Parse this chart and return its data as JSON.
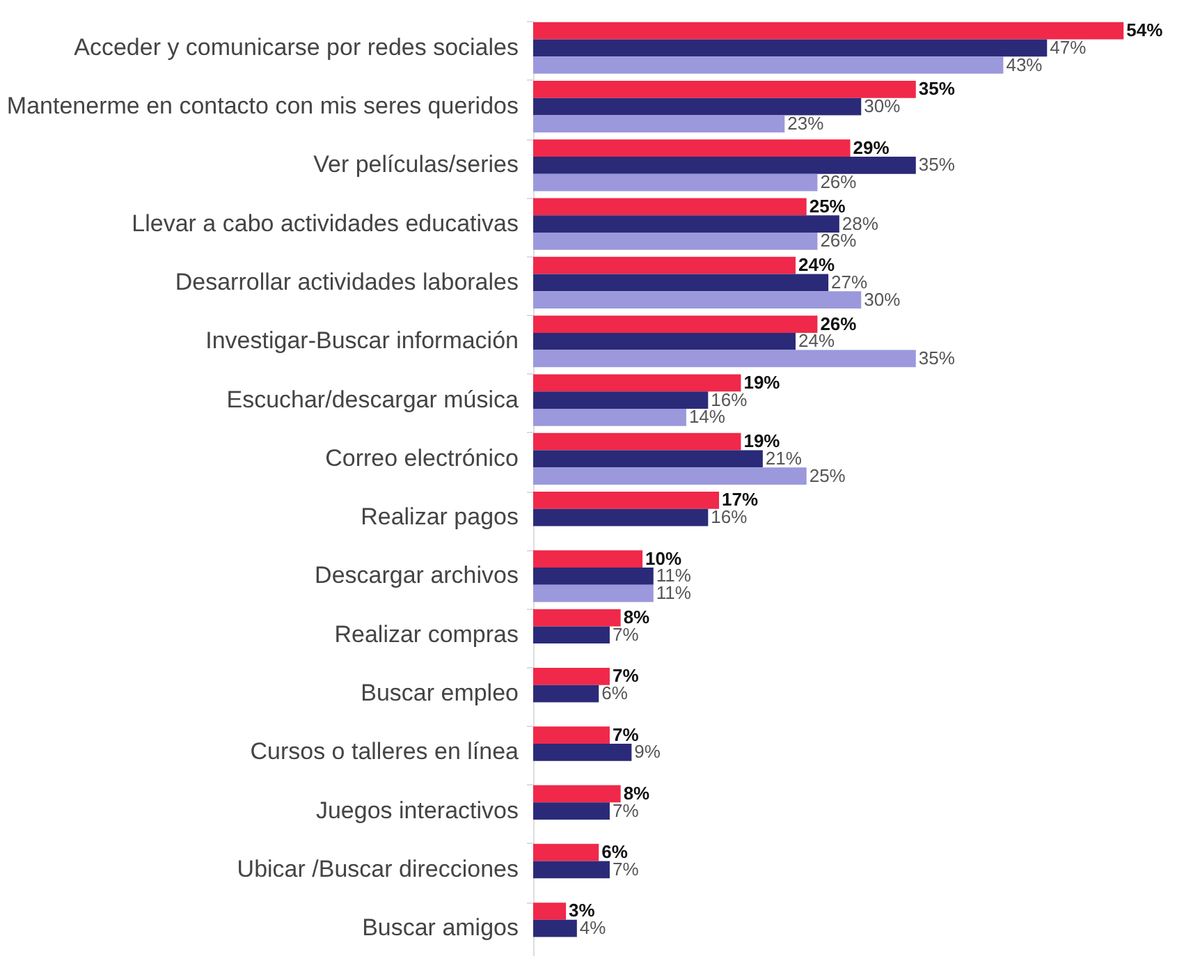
{
  "chart_data": {
    "type": "bar",
    "orientation": "horizontal",
    "legend": false,
    "categories": [
      "Acceder y comunicarse por redes sociales",
      "Mantenerme en contacto con mis seres queridos",
      "Ver películas/series",
      "Llevar a cabo actividades educativas",
      "Desarrollar actividades laborales",
      "Investigar-Buscar información",
      "Escuchar/descargar música",
      "Correo electrónico",
      "Realizar pagos",
      "Descargar archivos",
      "Realizar compras",
      "Buscar empleo",
      "Cursos o talleres en línea",
      "Juegos interactivos",
      "Ubicar /Buscar direcciones",
      "Buscar amigos"
    ],
    "series": [
      {
        "color": "#f0284a",
        "values": [
          54,
          35,
          29,
          25,
          24,
          26,
          19,
          19,
          17,
          10,
          8,
          7,
          7,
          8,
          6,
          3
        ],
        "value_labels": [
          "54%",
          "35%",
          "29%",
          "25%",
          "24%",
          "26%",
          "19%",
          "19%",
          "17%",
          "10%",
          "8%",
          "7%",
          "7%",
          "8%",
          "6%",
          "3%"
        ]
      },
      {
        "color": "#2b2a78",
        "values": [
          47,
          30,
          35,
          28,
          27,
          24,
          16,
          21,
          16,
          11,
          7,
          6,
          9,
          7,
          7,
          4
        ],
        "value_labels": [
          "47%",
          "30%",
          "35%",
          "28%",
          "27%",
          "24%",
          "16%",
          "21%",
          "16%",
          "11%",
          "7%",
          "6%",
          "9%",
          "7%",
          "7%",
          "4%"
        ]
      },
      {
        "color": "#9b98dc",
        "values": [
          43,
          23,
          26,
          26,
          30,
          35,
          14,
          25,
          null,
          11,
          null,
          null,
          null,
          null,
          null,
          null
        ],
        "value_labels": [
          "43%",
          "23%",
          "26%",
          "26%",
          "30%",
          "35%",
          "14%",
          "25%",
          null,
          "11%",
          null,
          null,
          null,
          null,
          null,
          null
        ]
      }
    ]
  }
}
